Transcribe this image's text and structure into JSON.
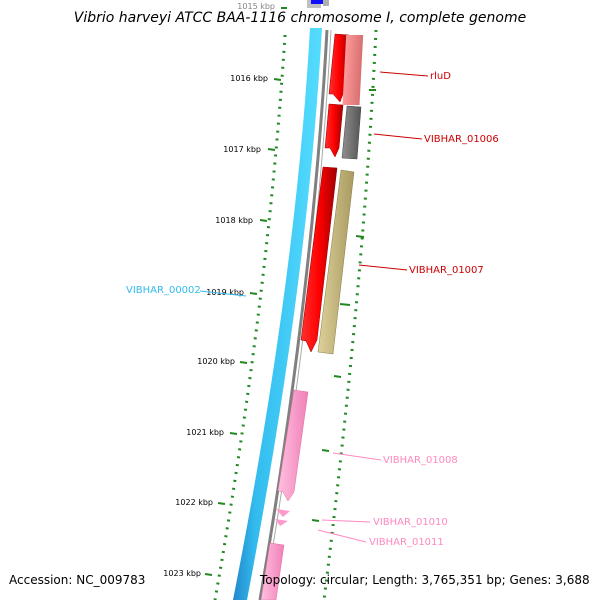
{
  "title": "Vibrio harveyi ATCC BAA-1116 chromosome I, complete genome",
  "ticks": [
    "1015 kbp",
    "1016 kbp",
    "1017 kbp",
    "1018 kbp",
    "1019 kbp",
    "1020 kbp",
    "1021 kbp",
    "1022 kbp",
    "1023 kbp"
  ],
  "labels": {
    "rluD": "rluD",
    "v01006": "VIBHAR_01006",
    "v01007": "VIBHAR_01007",
    "v00002": "VIBHAR_00002",
    "v01008": "VIBHAR_01008",
    "v01010": "VIBHAR_01010",
    "v01011": "VIBHAR_01011"
  },
  "colors": {
    "forward_cds": "#ff0000",
    "reverse_cds": "#d08080",
    "other_cds": "#c8b878",
    "pink_cds": "#ff99cc",
    "contig": "#33ccff",
    "gc_skew": "#228822"
  },
  "footer": {
    "accession": "Accession: NC_009783",
    "stats": "Topology: circular; Length: 3,765,351 bp; Genes: 3,688"
  }
}
